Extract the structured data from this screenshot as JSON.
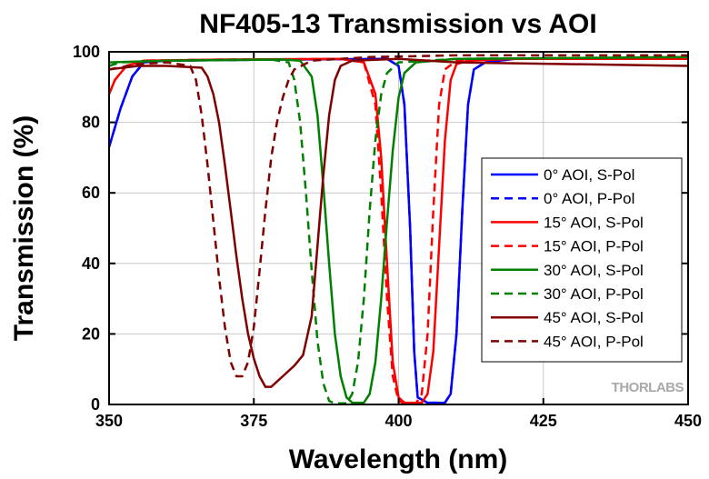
{
  "chart_data": {
    "type": "line",
    "title": "NF405-13 Transmission vs AOI",
    "xlabel": "Wavelength (nm)",
    "ylabel": "Transmission (%)",
    "xlim": [
      350,
      450
    ],
    "ylim": [
      0,
      100
    ],
    "xticks": [
      350,
      375,
      400,
      425,
      450
    ],
    "yticks": [
      0,
      20,
      40,
      60,
      80,
      100
    ],
    "grid": true,
    "legend_position": "right",
    "watermark": "THORLABS",
    "series": [
      {
        "name": "0° AOI, S-Pol",
        "color": "#0000ff",
        "dash": false,
        "points": [
          [
            350,
            73
          ],
          [
            352,
            84
          ],
          [
            354,
            93
          ],
          [
            356,
            97
          ],
          [
            360,
            97.5
          ],
          [
            380,
            97.8
          ],
          [
            398,
            98
          ],
          [
            400,
            96
          ],
          [
            401,
            85
          ],
          [
            402,
            50
          ],
          [
            402.7,
            15
          ],
          [
            403.3,
            2
          ],
          [
            405,
            0.5
          ],
          [
            408,
            0.5
          ],
          [
            409,
            3
          ],
          [
            410,
            20
          ],
          [
            411,
            55
          ],
          [
            412,
            85
          ],
          [
            413,
            95
          ],
          [
            415,
            97
          ],
          [
            420,
            98
          ],
          [
            450,
            98.5
          ]
        ]
      },
      {
        "name": "0° AOI, P-Pol",
        "color": "#0000ff",
        "dash": true,
        "points": [
          [
            350,
            73
          ],
          [
            352,
            84
          ],
          [
            354,
            93
          ],
          [
            356,
            97
          ],
          [
            360,
            97.5
          ],
          [
            380,
            97.8
          ],
          [
            398,
            98
          ],
          [
            400,
            96
          ],
          [
            401,
            85
          ],
          [
            402,
            50
          ],
          [
            402.7,
            15
          ],
          [
            403.3,
            2
          ],
          [
            405,
            0.5
          ],
          [
            408,
            0.5
          ],
          [
            409,
            3
          ],
          [
            410,
            20
          ],
          [
            411,
            55
          ],
          [
            412,
            85
          ],
          [
            413,
            95
          ],
          [
            415,
            97
          ],
          [
            420,
            98
          ],
          [
            450,
            98.5
          ]
        ]
      },
      {
        "name": "15° AOI, S-Pol",
        "color": "#ff0000",
        "dash": false,
        "points": [
          [
            350,
            88
          ],
          [
            351,
            92
          ],
          [
            353,
            96
          ],
          [
            356,
            97.5
          ],
          [
            370,
            97.8
          ],
          [
            390,
            98
          ],
          [
            394,
            97
          ],
          [
            396,
            88
          ],
          [
            397,
            70
          ],
          [
            398,
            40
          ],
          [
            399,
            12
          ],
          [
            400,
            2
          ],
          [
            401,
            0.5
          ],
          [
            404,
            0.5
          ],
          [
            405,
            3
          ],
          [
            406,
            15
          ],
          [
            407,
            45
          ],
          [
            408,
            75
          ],
          [
            409,
            92
          ],
          [
            410,
            96.5
          ],
          [
            412,
            97.5
          ],
          [
            420,
            98
          ],
          [
            450,
            98
          ]
        ]
      },
      {
        "name": "15° AOI, P-Pol",
        "color": "#ff0000",
        "dash": true,
        "points": [
          [
            350,
            88
          ],
          [
            351,
            92
          ],
          [
            353,
            96
          ],
          [
            356,
            97.5
          ],
          [
            370,
            97.8
          ],
          [
            390,
            98
          ],
          [
            394,
            97
          ],
          [
            396,
            85
          ],
          [
            397,
            60
          ],
          [
            398,
            30
          ],
          [
            399,
            8
          ],
          [
            400,
            1
          ],
          [
            401,
            0.3
          ],
          [
            403,
            0.3
          ],
          [
            404,
            3
          ],
          [
            405,
            20
          ],
          [
            406,
            55
          ],
          [
            407,
            85
          ],
          [
            408,
            95
          ],
          [
            410,
            97.5
          ],
          [
            420,
            98
          ],
          [
            450,
            98
          ]
        ]
      },
      {
        "name": "30° AOI, S-Pol",
        "color": "#008000",
        "dash": false,
        "points": [
          [
            350,
            97
          ],
          [
            360,
            97.5
          ],
          [
            380,
            97.8
          ],
          [
            383,
            97.5
          ],
          [
            385,
            93
          ],
          [
            386,
            82
          ],
          [
            387,
            62
          ],
          [
            388,
            40
          ],
          [
            389,
            20
          ],
          [
            390,
            8
          ],
          [
            391,
            2
          ],
          [
            392,
            0.5
          ],
          [
            394,
            0.5
          ],
          [
            395,
            3
          ],
          [
            396,
            12
          ],
          [
            397,
            30
          ],
          [
            398,
            52
          ],
          [
            399,
            72
          ],
          [
            400,
            87
          ],
          [
            401,
            94
          ],
          [
            403,
            97
          ],
          [
            410,
            98
          ],
          [
            450,
            98.5
          ]
        ]
      },
      {
        "name": "30° AOI, P-Pol",
        "color": "#008000",
        "dash": true,
        "points": [
          [
            350,
            96
          ],
          [
            352,
            97
          ],
          [
            360,
            97.5
          ],
          [
            378,
            97.8
          ],
          [
            381,
            97
          ],
          [
            382,
            92
          ],
          [
            383,
            80
          ],
          [
            384,
            60
          ],
          [
            385,
            38
          ],
          [
            386,
            18
          ],
          [
            387,
            6
          ],
          [
            388,
            1
          ],
          [
            389,
            0.3
          ],
          [
            391,
            0.3
          ],
          [
            392,
            3
          ],
          [
            393,
            12
          ],
          [
            394,
            30
          ],
          [
            395,
            55
          ],
          [
            396,
            75
          ],
          [
            397,
            88
          ],
          [
            398,
            94
          ],
          [
            400,
            97
          ],
          [
            410,
            98
          ],
          [
            450,
            98.5
          ]
        ]
      },
      {
        "name": "45° AOI, S-Pol",
        "color": "#800000",
        "dash": false,
        "points": [
          [
            350,
            95
          ],
          [
            355,
            96
          ],
          [
            360,
            96
          ],
          [
            366,
            95.5
          ],
          [
            367,
            93
          ],
          [
            368,
            88
          ],
          [
            369,
            80
          ],
          [
            370,
            68
          ],
          [
            371,
            55
          ],
          [
            372,
            42
          ],
          [
            373,
            30
          ],
          [
            374,
            20
          ],
          [
            375,
            13
          ],
          [
            376,
            8
          ],
          [
            377,
            5
          ],
          [
            378,
            5
          ],
          [
            380,
            8
          ],
          [
            382,
            11
          ],
          [
            383.5,
            14
          ],
          [
            385,
            25
          ],
          [
            386,
            45
          ],
          [
            387,
            65
          ],
          [
            388,
            82
          ],
          [
            389,
            92
          ],
          [
            390,
            96
          ],
          [
            392,
            97.5
          ],
          [
            400,
            98
          ],
          [
            410,
            97
          ],
          [
            430,
            96.5
          ],
          [
            450,
            96
          ]
        ]
      },
      {
        "name": "45° AOI, P-Pol",
        "color": "#800000",
        "dash": true,
        "points": [
          [
            350,
            95
          ],
          [
            355,
            96.5
          ],
          [
            360,
            97
          ],
          [
            364,
            96
          ],
          [
            365,
            92
          ],
          [
            366,
            82
          ],
          [
            367,
            68
          ],
          [
            368,
            52
          ],
          [
            369,
            36
          ],
          [
            370,
            22
          ],
          [
            371,
            12
          ],
          [
            372,
            8
          ],
          [
            373,
            8
          ],
          [
            374,
            12
          ],
          [
            375,
            22
          ],
          [
            376,
            38
          ],
          [
            377,
            55
          ],
          [
            378,
            70
          ],
          [
            379,
            80
          ],
          [
            380,
            87
          ],
          [
            381,
            92
          ],
          [
            382,
            95
          ],
          [
            385,
            97.5
          ],
          [
            395,
            98.5
          ],
          [
            410,
            99
          ],
          [
            450,
            99
          ]
        ]
      }
    ]
  }
}
